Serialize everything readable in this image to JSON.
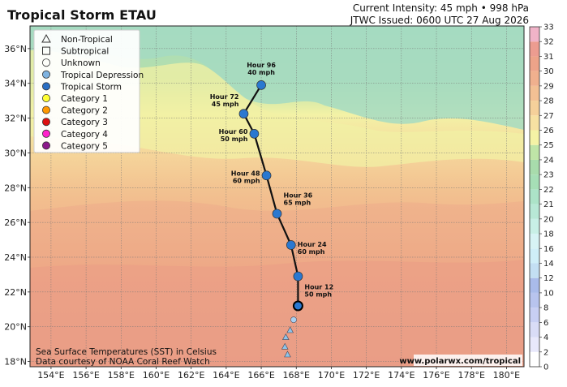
{
  "header": {
    "title": "Tropical Storm ETAU",
    "intensity": "Current Intensity: 45 mph • 998 hPa",
    "issued": "JTWC Issued: 0600 UTC 27 Aug 2026"
  },
  "axes": {
    "lon_ticks": [
      "154°E",
      "156°E",
      "158°E",
      "160°E",
      "162°E",
      "164°E",
      "166°E",
      "168°E",
      "170°E",
      "172°E",
      "174°E",
      "176°E",
      "178°E",
      "180°E"
    ],
    "lat_ticks": [
      "18°N",
      "20°N",
      "22°N",
      "24°N",
      "26°N",
      "28°N",
      "30°N",
      "32°N",
      "34°N",
      "36°N"
    ]
  },
  "legend": {
    "items": [
      {
        "label": "Non-Tropical",
        "shape": "triangle",
        "color": "none"
      },
      {
        "label": "Subtropical",
        "shape": "square",
        "color": "none"
      },
      {
        "label": "Unknown",
        "shape": "circle",
        "color": "none"
      },
      {
        "label": "Tropical Depression",
        "shape": "circle",
        "color": "#7fb3e0"
      },
      {
        "label": "Tropical Storm",
        "shape": "circle",
        "color": "#2a6fc4"
      },
      {
        "label": "Category 1",
        "shape": "circle",
        "color": "#ffff33"
      },
      {
        "label": "Category 2",
        "shape": "circle",
        "color": "#ff9900"
      },
      {
        "label": "Category 3",
        "shape": "circle",
        "color": "#dd1111"
      },
      {
        "label": "Category 4",
        "shape": "circle",
        "color": "#ff22cc"
      },
      {
        "label": "Category 5",
        "shape": "circle",
        "color": "#8b1a8b"
      }
    ]
  },
  "colorbar": {
    "ticks": [
      "0",
      "2",
      "4",
      "6",
      "8",
      "10",
      "12",
      "14",
      "16",
      "18",
      "20",
      "21",
      "22",
      "23",
      "24",
      "25",
      "26",
      "27",
      "28",
      "29",
      "30",
      "31",
      "32",
      "33"
    ]
  },
  "track": {
    "past": [
      {
        "lon": 167.5,
        "lat": 18.4,
        "type": "non-tropical"
      },
      {
        "lon": 167.35,
        "lat": 18.85,
        "type": "non-tropical"
      },
      {
        "lon": 167.4,
        "lat": 19.4,
        "type": "non-tropical"
      },
      {
        "lon": 167.65,
        "lat": 19.8,
        "type": "non-tropical"
      },
      {
        "lon": 167.85,
        "lat": 20.4,
        "type": "tropical-depression"
      }
    ],
    "current": {
      "lon": 168.1,
      "lat": 21.2,
      "type": "tropical-storm"
    },
    "forecast": [
      {
        "lon": 168.1,
        "lat": 22.9,
        "hour": "Hour 12",
        "wind": "50 mph",
        "label_side": "below-right"
      },
      {
        "lon": 167.7,
        "lat": 24.7,
        "hour": "Hour 24",
        "wind": "60 mph",
        "label_side": "right"
      },
      {
        "lon": 166.9,
        "lat": 26.5,
        "hour": "Hour 36",
        "wind": "65 mph",
        "label_side": "above-right"
      },
      {
        "lon": 166.3,
        "lat": 28.7,
        "hour": "Hour 48",
        "wind": "60 mph",
        "label_side": "left"
      },
      {
        "lon": 165.6,
        "lat": 31.1,
        "hour": "Hour 60",
        "wind": "50 mph",
        "label_side": "left"
      },
      {
        "lon": 165.0,
        "lat": 32.25,
        "hour": "Hour 72",
        "wind": "45 mph",
        "label_side": "above-left"
      },
      {
        "lon": 166.0,
        "lat": 33.9,
        "hour": "Hour 96",
        "wind": "40 mph",
        "label_side": "above"
      }
    ]
  },
  "footer": {
    "credit_line1": "Sea Surface Temperatures (SST) in Celsius",
    "credit_line2": "Data courtesy of NOAA Coral Reef Watch",
    "url": "www.polarwx.com/tropical"
  }
}
